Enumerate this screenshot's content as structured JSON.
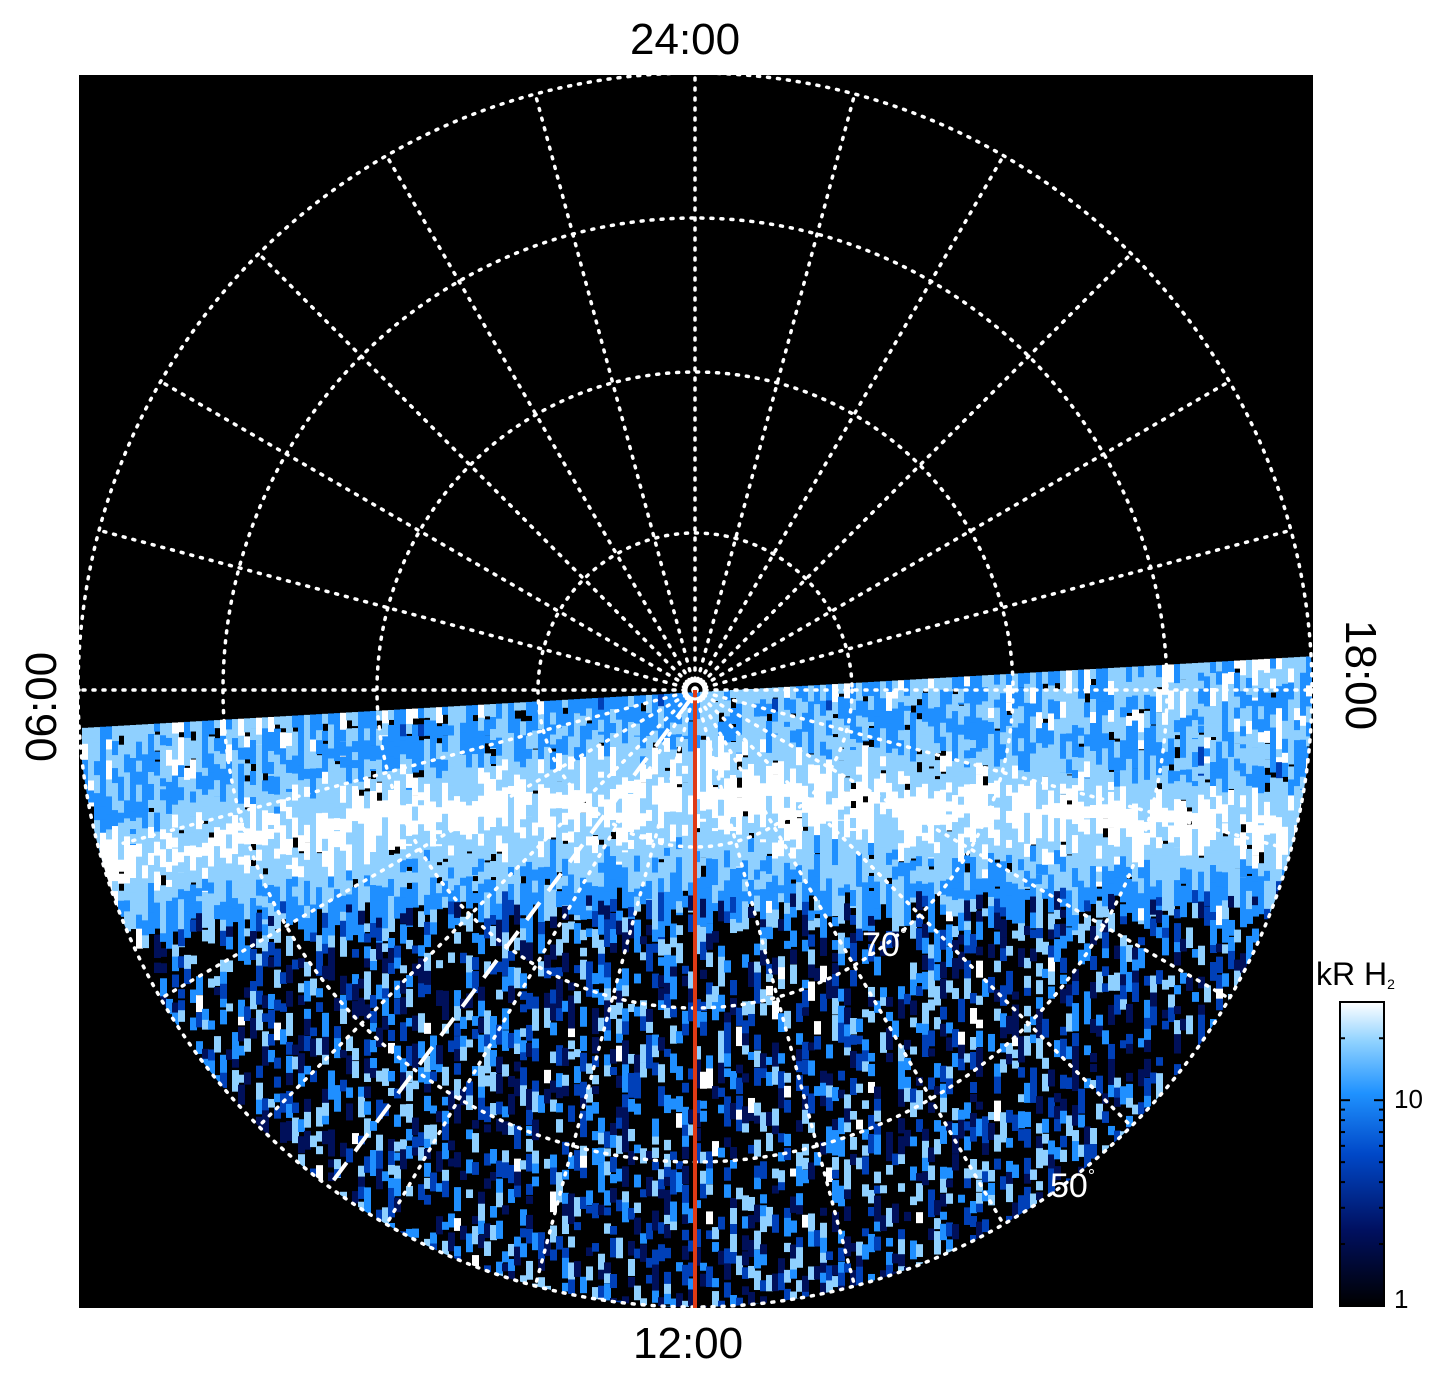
{
  "chart_data": {
    "type": "heatmap",
    "projection": "polar (local time vs latitude)",
    "local_time_labels": {
      "top": "24:00",
      "bottom": "12:00",
      "left": "06:00",
      "right": "18:00"
    },
    "latitude_labels": [
      {
        "text": "70",
        "unit": "°"
      },
      {
        "text": "50",
        "unit": "°"
      }
    ],
    "colorbar": {
      "title_main": "kR H",
      "title_sub": "2",
      "scale": "log",
      "ticks": [
        "10",
        "1"
      ],
      "range": [
        1,
        30
      ]
    },
    "grid": true,
    "colors": {
      "background": "#000000",
      "grid": "#ffffff",
      "meridian_line": "#e03a14",
      "colormap": [
        "#000000",
        "#00105a",
        "#0040b8",
        "#1f8fff",
        "#8fd0ff",
        "#ffffff"
      ]
    }
  }
}
